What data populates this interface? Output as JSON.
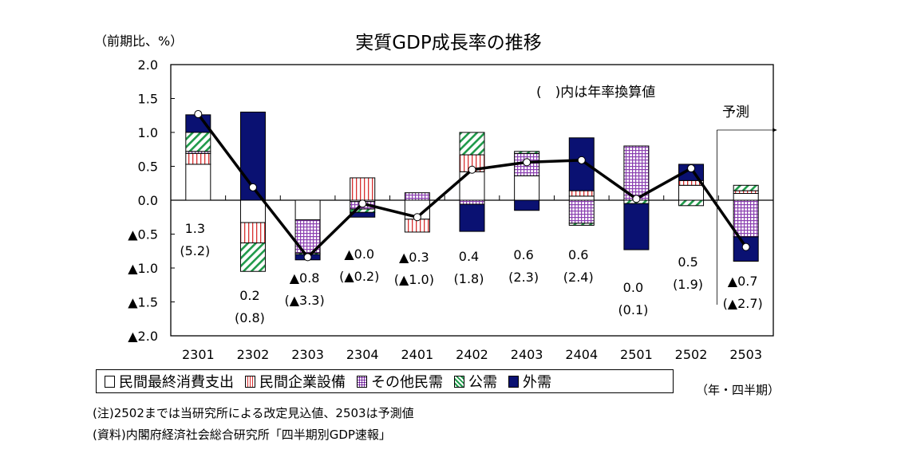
{
  "chart_data": {
    "type": "bar",
    "stacked": true,
    "title": "実質GDP成長率の推移",
    "ylabel": "（前期比、%）",
    "xlabel": "（年・四半期）",
    "ylim": [
      -2.0,
      2.0
    ],
    "yticks": [
      2.0,
      1.5,
      1.0,
      0.5,
      0.0,
      -0.5,
      -1.0,
      -1.5,
      -2.0
    ],
    "ytick_labels": [
      "2.0",
      "1.5",
      "1.0",
      "0.5",
      "0.0",
      "▲0.5",
      "▲1.0",
      "▲1.5",
      "▲2.0"
    ],
    "grid": false,
    "legend_position": "bottom",
    "categories": [
      "2301",
      "2302",
      "2303",
      "2304",
      "2401",
      "2402",
      "2403",
      "2404",
      "2501",
      "2502",
      "2503"
    ],
    "series": [
      {
        "name": "民間最終消費支出",
        "pattern": "white",
        "color": "#ffffff",
        "values": [
          0.53,
          -0.33,
          -0.29,
          -0.02,
          -0.28,
          0.42,
          0.36,
          0.06,
          0.0,
          0.22,
          0.1
        ]
      },
      {
        "name": "民間企業設備",
        "pattern": "vertical-lines",
        "color": "#d83030",
        "values": [
          0.16,
          -0.3,
          0.0,
          0.33,
          -0.19,
          0.25,
          0.0,
          0.08,
          0.0,
          0.07,
          0.04
        ]
      },
      {
        "name": "その他民需",
        "pattern": "grid",
        "color": "#8a3fb0",
        "values": [
          0.03,
          0.0,
          -0.49,
          -0.11,
          0.11,
          -0.06,
          0.33,
          -0.34,
          0.8,
          0.0,
          -0.54
        ]
      },
      {
        "name": "公需",
        "pattern": "diagonal",
        "color": "#1f9a4a",
        "values": [
          0.28,
          -0.42,
          -0.02,
          -0.05,
          0.0,
          0.33,
          0.03,
          -0.03,
          -0.05,
          -0.08,
          0.08
        ]
      },
      {
        "name": "外需",
        "pattern": "solid",
        "color": "#0a1172",
        "values": [
          0.26,
          1.3,
          -0.08,
          -0.07,
          0.0,
          -0.4,
          -0.15,
          0.78,
          -0.68,
          0.24,
          -0.36
        ]
      }
    ],
    "line": {
      "name": "実質GDP成長率",
      "values": [
        1.27,
        0.19,
        -0.84,
        -0.05,
        -0.25,
        0.45,
        0.56,
        0.59,
        0.02,
        0.47,
        -0.69
      ]
    },
    "data_labels": [
      "1.3",
      "0.2",
      "▲0.8",
      "▲0.0",
      "▲0.3",
      "0.4",
      "0.6",
      "0.6",
      "0.0",
      "0.5",
      "▲0.7"
    ],
    "annualized_labels": [
      "(5.2)",
      "(0.8)",
      "(▲3.3)",
      "(▲0.2)",
      "(▲1.0)",
      "(1.8)",
      "(2.3)",
      "(2.4)",
      "(0.1)",
      "(1.9)",
      "(▲2.7)"
    ],
    "annotations": {
      "annualized_note": "(　)内は年率換算値",
      "forecast": "予測"
    }
  },
  "notes": [
    "(注)2502までは当研究所による改定見込値、2503は予測値",
    "(資料)内閣府経済社会総合研究所「四半期別GDP速報」"
  ]
}
